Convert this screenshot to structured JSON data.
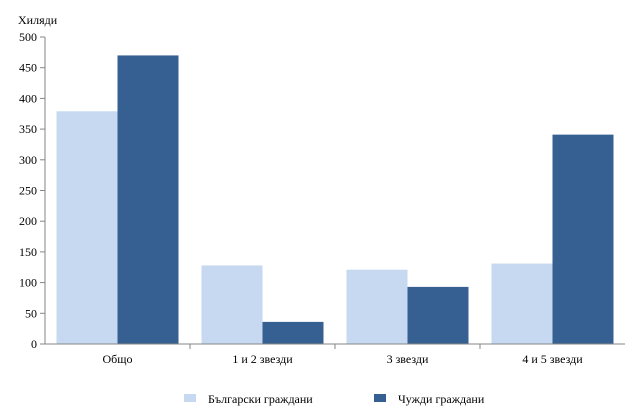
{
  "chart_data": {
    "type": "bar",
    "ylabel": "Хиляди",
    "categories": [
      "Общо",
      "1 и 2 звезди",
      "3 звезди",
      "4 и 5 звезди"
    ],
    "series": [
      {
        "name": "Български граждани",
        "color": "#c6d9f1",
        "values": [
          379,
          128,
          121,
          131
        ]
      },
      {
        "name": "Чужди граждани",
        "color": "#376092",
        "values": [
          470,
          36,
          93,
          341
        ]
      }
    ],
    "ylim": [
      0,
      500
    ],
    "yticks": [
      0,
      50,
      100,
      150,
      200,
      250,
      300,
      350,
      400,
      450,
      500
    ],
    "ytick_labels": [
      "0",
      "50",
      "100",
      "150",
      "200",
      "250",
      "300",
      "350",
      "400",
      "450",
      "500"
    ],
    "grid": false,
    "legend_position": "bottom"
  }
}
